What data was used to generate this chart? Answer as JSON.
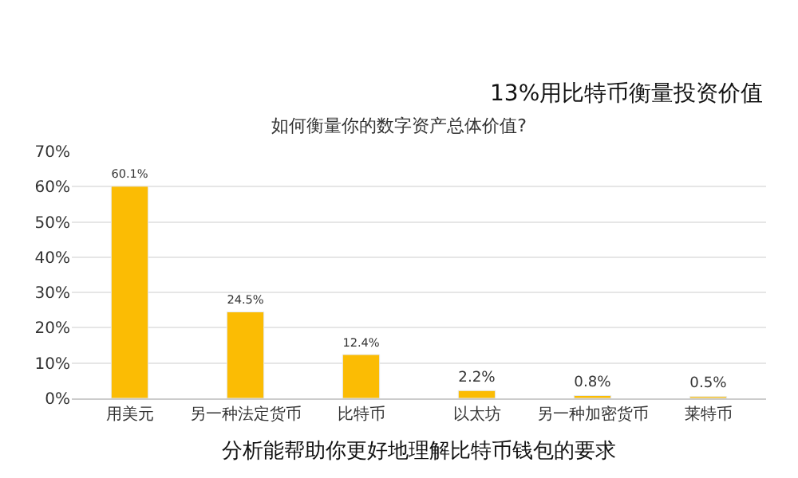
{
  "chart_data": {
    "type": "bar",
    "title": "如何衡量你的数字资产总体价值?",
    "categories": [
      "用美元",
      "另一种法定货币",
      "比特币",
      "以太坊",
      "另一种加密货币",
      "莱特币"
    ],
    "values": [
      60.1,
      24.5,
      12.4,
      2.2,
      0.8,
      0.5
    ],
    "value_labels": [
      "60.1%",
      "24.5%",
      "12.4%",
      "2.2%",
      "0.8%",
      "0.5%"
    ],
    "color": "#fbbc04",
    "ylim": [
      0,
      70
    ],
    "yticks": [
      {
        "value": 0,
        "label": "0%"
      },
      {
        "value": 10,
        "label": "10%"
      },
      {
        "value": 20,
        "label": "20%"
      },
      {
        "value": 30,
        "label": "30%"
      },
      {
        "value": 40,
        "label": "40%"
      },
      {
        "value": 50,
        "label": "50%"
      },
      {
        "value": 60,
        "label": "60%"
      },
      {
        "value": 70,
        "label": "70%"
      }
    ],
    "grid": "y",
    "annotations": [
      "13%用比特币衡量投资价值",
      "分析能帮助你更好地理解比特币钱包的要求"
    ]
  }
}
